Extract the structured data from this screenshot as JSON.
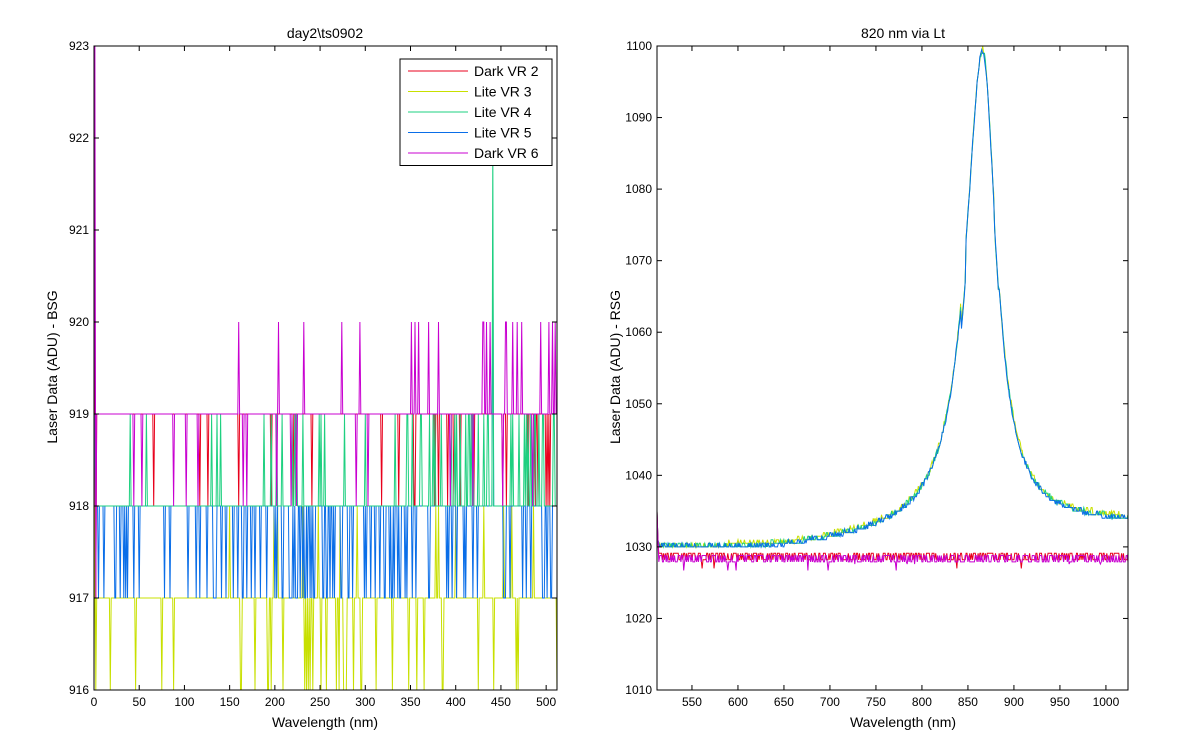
{
  "colors": {
    "dark_vr2": "#e8001c",
    "lite_vr3": "#c8e000",
    "lite_vr4": "#1ed080",
    "lite_vr5": "#0a6ee8",
    "dark_vr6": "#c800d0"
  },
  "chart_data": [
    {
      "type": "line",
      "title": "day2\\ts0902",
      "xlabel": "Wavelength (nm)",
      "ylabel": "Laser Data (ADU) - BSG",
      "xlim": [
        0,
        512
      ],
      "ylim": [
        916,
        923
      ],
      "xticks": [
        0,
        50,
        100,
        150,
        200,
        250,
        300,
        350,
        400,
        450,
        500
      ],
      "yticks": [
        916,
        917,
        918,
        919,
        920,
        921,
        922,
        923
      ],
      "legend_position": "top-right",
      "series": [
        {
          "name": "Dark VR 2",
          "color": "#e8001c",
          "base": 919,
          "low": 918,
          "high": 920,
          "start": [
            917,
            920.5
          ],
          "flips_low": [
            0.01,
            0.04,
            0.07
          ],
          "flips_high": [
            0.0,
            0.0,
            0.0
          ]
        },
        {
          "name": "Lite VR 3",
          "color": "#c8e000",
          "base": 917,
          "low": 916,
          "high": 918,
          "start": [
            916,
            918
          ],
          "flips_low": [
            0.04,
            0.1,
            0.05
          ],
          "flips_high": [
            0.01,
            0.02,
            0.03
          ]
        },
        {
          "name": "Lite VR 4",
          "color": "#1ed080",
          "base": 918,
          "low": 917,
          "high": 919,
          "start": [
            918,
            919
          ],
          "flips_low": [
            0.0,
            0.0,
            0.0
          ],
          "flips_high": [
            0.02,
            0.08,
            0.18
          ],
          "spike": {
            "x": 441,
            "y": 922
          }
        },
        {
          "name": "Lite VR 5",
          "color": "#0a6ee8",
          "base": 918,
          "low": 917,
          "high": 918,
          "start": [
            918,
            918
          ],
          "flips_low": [
            0.12,
            0.22,
            0.22
          ],
          "flips_high": [
            0.0,
            0.0,
            0.0
          ],
          "spike": {
            "x": 441,
            "y": 921
          }
        },
        {
          "name": "Dark VR 6",
          "color": "#c800d0",
          "base": 919,
          "low": 918,
          "high": 920,
          "start": [
            917,
            923
          ],
          "flips_low": [
            0.02,
            0.04,
            0.06
          ],
          "flips_high": [
            0.005,
            0.02,
            0.08
          ]
        }
      ]
    },
    {
      "type": "line",
      "title": "820 nm via Lt",
      "xlabel": "Wavelength (nm)",
      "ylabel": "Laser Data (ADU) - RSG",
      "xlim": [
        512,
        1024
      ],
      "ylim": [
        1010,
        1100
      ],
      "xticks": [
        550,
        600,
        650,
        700,
        750,
        800,
        850,
        900,
        950,
        1000
      ],
      "yticks": [
        1010,
        1020,
        1030,
        1040,
        1050,
        1060,
        1070,
        1080,
        1090,
        1100
      ],
      "peak": {
        "x": 866,
        "y": 1099,
        "baseline_left": 1029.5,
        "baseline_right": 1033
      },
      "series": [
        {
          "color": "#c8e000",
          "kind": "peak",
          "offset": 0.3
        },
        {
          "color": "#1ed080",
          "kind": "peak",
          "offset": 0.1
        },
        {
          "color": "#0a6ee8",
          "kind": "peak",
          "offset": 0
        },
        {
          "color": "#e8001c",
          "kind": "dark",
          "base": 1028.5
        },
        {
          "color": "#c800d0",
          "kind": "dark",
          "base": 1028.2
        }
      ]
    }
  ]
}
